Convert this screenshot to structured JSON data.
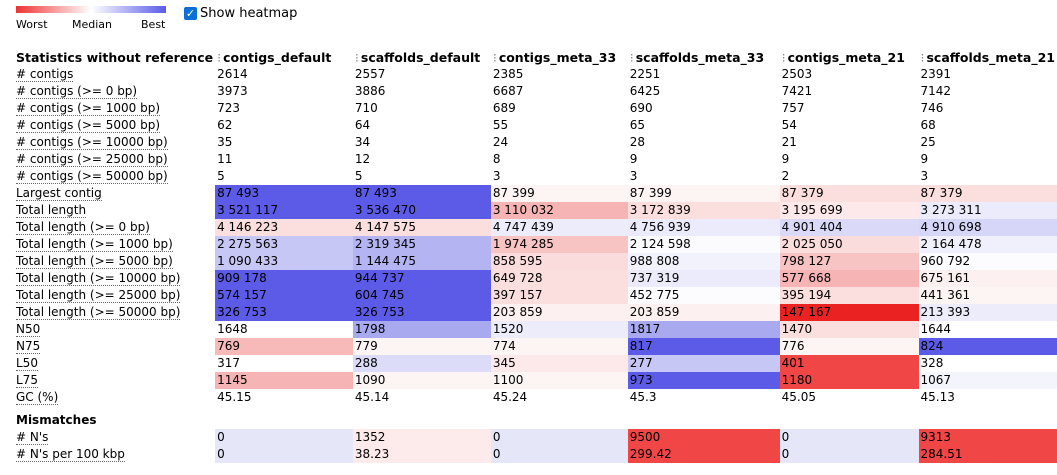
{
  "legend": {
    "worst_label": "Worst",
    "median_label": "Median",
    "best_label": "Best",
    "colors": {
      "worst": "#ec3333",
      "median": "#ffffff",
      "best": "#5b5be8"
    }
  },
  "heatmap_toggle": {
    "label": "Show heatmap",
    "checked": true
  },
  "table": {
    "header_label": "Statistics without reference",
    "columns": [
      "contigs_default",
      "scaffolds_default",
      "contigs_meta_33",
      "scaffolds_meta_33",
      "contigs_meta_21",
      "scaffolds_meta_21"
    ],
    "sections": [
      {
        "title": "",
        "rows": [
          {
            "label": "# contigs",
            "cells": [
              [
                "2614",
                ""
              ],
              [
                "2557",
                ""
              ],
              [
                "2385",
                ""
              ],
              [
                "2251",
                ""
              ],
              [
                "2503",
                ""
              ],
              [
                "2391",
                ""
              ]
            ]
          },
          {
            "label": "# contigs (>= 0 bp)",
            "cells": [
              [
                "3973",
                ""
              ],
              [
                "3886",
                ""
              ],
              [
                "6687",
                ""
              ],
              [
                "6425",
                ""
              ],
              [
                "7421",
                ""
              ],
              [
                "7142",
                ""
              ]
            ]
          },
          {
            "label": "# contigs (>= 1000 bp)",
            "cells": [
              [
                "723",
                ""
              ],
              [
                "710",
                ""
              ],
              [
                "689",
                ""
              ],
              [
                "690",
                ""
              ],
              [
                "757",
                ""
              ],
              [
                "746",
                ""
              ]
            ]
          },
          {
            "label": "# contigs (>= 5000 bp)",
            "cells": [
              [
                "62",
                ""
              ],
              [
                "64",
                ""
              ],
              [
                "55",
                ""
              ],
              [
                "65",
                ""
              ],
              [
                "54",
                ""
              ],
              [
                "68",
                ""
              ]
            ]
          },
          {
            "label": "# contigs (>= 10000 bp)",
            "cells": [
              [
                "35",
                ""
              ],
              [
                "34",
                ""
              ],
              [
                "24",
                ""
              ],
              [
                "28",
                ""
              ],
              [
                "21",
                ""
              ],
              [
                "25",
                ""
              ]
            ]
          },
          {
            "label": "# contigs (>= 25000 bp)",
            "cells": [
              [
                "11",
                ""
              ],
              [
                "12",
                ""
              ],
              [
                "8",
                ""
              ],
              [
                "9",
                ""
              ],
              [
                "9",
                ""
              ],
              [
                "9",
                ""
              ]
            ]
          },
          {
            "label": "# contigs (>= 50000 bp)",
            "cells": [
              [
                "5",
                ""
              ],
              [
                "5",
                ""
              ],
              [
                "3",
                ""
              ],
              [
                "3",
                ""
              ],
              [
                "2",
                ""
              ],
              [
                "3",
                ""
              ]
            ]
          },
          {
            "label": "Largest contig",
            "cells": [
              [
                "87 493",
                "#5b5be8"
              ],
              [
                "87 493",
                "#5b5be8"
              ],
              [
                "87 399",
                "#fdf4f4"
              ],
              [
                "87 399",
                "#fdf4f4"
              ],
              [
                "87 379",
                "#fbdede"
              ],
              [
                "87 379",
                "#fbdede"
              ]
            ]
          },
          {
            "label": "Total length",
            "cells": [
              [
                "3 521 117",
                "#5b5be8"
              ],
              [
                "3 536 470",
                "#5b5be8"
              ],
              [
                "3 110 032",
                "#f6b4b4"
              ],
              [
                "3 172 839",
                "#fbdede"
              ],
              [
                "3 195 699",
                "#fde9e9"
              ],
              [
                "3 273 311",
                "#ebebfb"
              ]
            ]
          },
          {
            "label": "Total length (>= 0 bp)",
            "cells": [
              [
                "4 146 223",
                "#fbdede"
              ],
              [
                "4 147 575",
                "#fbdede"
              ],
              [
                "4 747 439",
                "#ececfb"
              ],
              [
                "4 756 939",
                "#ebebfb"
              ],
              [
                "4 901 404",
                "#dadaf8"
              ],
              [
                "4 910 698",
                "#d6d6f8"
              ]
            ]
          },
          {
            "label": "Total length (>= 1000 bp)",
            "cells": [
              [
                "2 275 563",
                "#c7c7f5"
              ],
              [
                "2 319 345",
                "#b4b4f2"
              ],
              [
                "1 974 285",
                "#f7c3c3"
              ],
              [
                "2 124 598",
                "#fbfbfe"
              ],
              [
                "2 025 050",
                "#fbdcdc"
              ],
              [
                "2 164 478",
                "#f0f0fc"
              ]
            ]
          },
          {
            "label": "Total length (>= 5000 bp)",
            "cells": [
              [
                "1 090 433",
                "#c7c7f5"
              ],
              [
                "1 144 475",
                "#b4b4f2"
              ],
              [
                "858 595",
                "#fbdcdc"
              ],
              [
                "988 808",
                "#f2f2fc"
              ],
              [
                "798 127",
                "#f7c3c3"
              ],
              [
                "960 792",
                "#fcfcfe"
              ]
            ]
          },
          {
            "label": "Total length (>= 10000 bp)",
            "cells": [
              [
                "909 178",
                "#5b5be8"
              ],
              [
                "944 737",
                "#5b5be8"
              ],
              [
                "649 728",
                "#fbdede"
              ],
              [
                "737 319",
                "#ebebfb"
              ],
              [
                "577 668",
                "#f6b4b4"
              ],
              [
                "675 161",
                "#fcf0f0"
              ]
            ]
          },
          {
            "label": "Total length (>= 25000 bp)",
            "cells": [
              [
                "574 157",
                "#5b5be8"
              ],
              [
                "604 745",
                "#5b5be8"
              ],
              [
                "397 157",
                "#fbdede"
              ],
              [
                "452 775",
                "#fcfcfe"
              ],
              [
                "395 194",
                "#fbdede"
              ],
              [
                "441 361",
                "#fdf4f4"
              ]
            ]
          },
          {
            "label": "Total length (>= 50000 bp)",
            "cells": [
              [
                "326 753",
                "#5b5be8"
              ],
              [
                "326 753",
                "#5b5be8"
              ],
              [
                "203 859",
                "#fdf0f0"
              ],
              [
                "203 859",
                "#fdf0f0"
              ],
              [
                "147 167",
                "#ea2222"
              ],
              [
                "213 393",
                "#ececfb"
              ]
            ]
          },
          {
            "label": "N50",
            "cells": [
              [
                "1648",
                ""
              ],
              [
                "1798",
                "#a9a9f0"
              ],
              [
                "1520",
                "#ececfb"
              ],
              [
                "1817",
                "#a9a9f0"
              ],
              [
                "1470",
                "#fbdede"
              ],
              [
                "1644",
                ""
              ]
            ]
          },
          {
            "label": "N75",
            "cells": [
              [
                "769",
                "#f8b9b9"
              ],
              [
                "779",
                "#fdf4f4"
              ],
              [
                "774",
                "#fdf4f4"
              ],
              [
                "817",
                "#5b5be8"
              ],
              [
                "776",
                "#fdf4f4"
              ],
              [
                "824",
                "#5b5be8"
              ]
            ]
          },
          {
            "label": "L50",
            "cells": [
              [
                "317",
                ""
              ],
              [
                "288",
                "#dcdcf8"
              ],
              [
                "345",
                "#fde9e9"
              ],
              [
                "277",
                "#c7c7f5"
              ],
              [
                "401",
                "#f04646"
              ],
              [
                "328",
                ""
              ]
            ]
          },
          {
            "label": "L75",
            "cells": [
              [
                "1145",
                "#f7b4b4"
              ],
              [
                "1090",
                "#fdf4f4"
              ],
              [
                "1100",
                "#fdf4f4"
              ],
              [
                "973",
                "#5b5be8"
              ],
              [
                "1180",
                "#f04646"
              ],
              [
                "1067",
                "#f4f4fd"
              ]
            ]
          },
          {
            "label": "GC (%)",
            "cells": [
              [
                "45.15",
                ""
              ],
              [
                "45.14",
                ""
              ],
              [
                "45.24",
                ""
              ],
              [
                "45.3",
                ""
              ],
              [
                "45.05",
                ""
              ],
              [
                "45.13",
                ""
              ]
            ]
          }
        ]
      },
      {
        "title": "Mismatches",
        "rows": [
          {
            "label": "# N's",
            "cells": [
              [
                "0",
                "#e6e6f9"
              ],
              [
                "1352",
                "#fdeaea"
              ],
              [
                "0",
                "#e6e6f9"
              ],
              [
                "9500",
                "#f04646"
              ],
              [
                "0",
                "#e6e6f9"
              ],
              [
                "9313",
                "#f04646"
              ]
            ]
          },
          {
            "label": "# N's per 100 kbp",
            "cells": [
              [
                "0",
                "#e6e6f9"
              ],
              [
                "38.23",
                "#fdeaea"
              ],
              [
                "0",
                "#e6e6f9"
              ],
              [
                "299.42",
                "#f04646"
              ],
              [
                "0",
                "#e6e6f9"
              ],
              [
                "284.51",
                "#f04646"
              ]
            ]
          }
        ]
      }
    ]
  }
}
